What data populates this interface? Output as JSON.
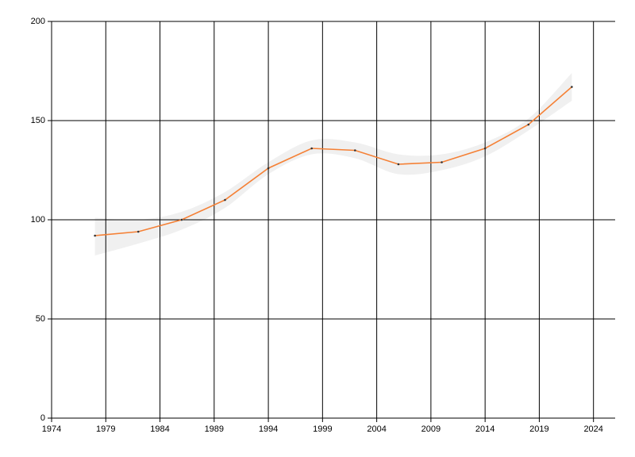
{
  "chart_data": {
    "type": "line",
    "x": [
      1978,
      1982,
      1986,
      1990,
      1994,
      1998,
      2002,
      2006,
      2010,
      2014,
      2018,
      2022
    ],
    "series": [
      {
        "color": "#f58035",
        "values": [
          92,
          94,
          100,
          110,
          126,
          136,
          135,
          128,
          129,
          136,
          148,
          167
        ]
      }
    ],
    "band": {
      "color": "#f0f0f0",
      "upper": [
        101,
        100,
        104,
        114,
        129,
        140,
        139,
        133,
        133,
        139,
        151,
        174
      ],
      "lower": [
        82,
        88,
        95,
        106,
        123,
        133,
        131,
        123,
        125,
        132,
        145,
        160
      ]
    },
    "xlim": [
      1974,
      2026
    ],
    "xticks": [
      1974,
      1979,
      1984,
      1989,
      1994,
      1999,
      2004,
      2009,
      2014,
      2019,
      2024
    ],
    "ylim": [
      0,
      200
    ],
    "yticks": [
      0,
      50,
      100,
      150,
      200
    ],
    "grid": true
  }
}
